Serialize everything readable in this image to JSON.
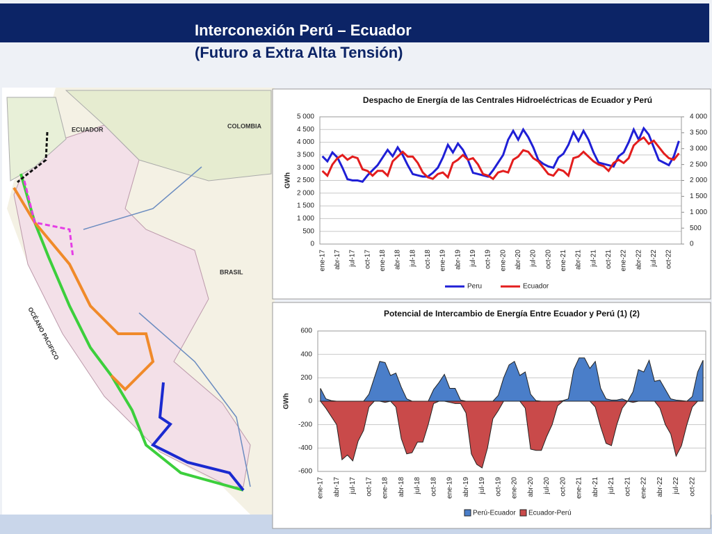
{
  "header": {
    "title": "Interconexión Perú – Ecuador",
    "subtitle": "(Futuro a Extra Alta Tensión)"
  },
  "map": {
    "labels": [
      "ECUADOR",
      "COLOMBIA",
      "BRASIL",
      "OCÉANO PACIFICO"
    ]
  },
  "chart_data": [
    {
      "type": "line",
      "title": "Despacho de Energía de las Centrales Hidroeléctricas de Ecuador y Perú",
      "y_label": "GWh",
      "categories": [
        "ene-17",
        null,
        null,
        "abr-17",
        null,
        null,
        "jul-17",
        null,
        null,
        "oct-17",
        null,
        null,
        "ene-18",
        null,
        null,
        "abr-18",
        null,
        null,
        "jul-18",
        null,
        null,
        "oct-18",
        null,
        null,
        "ene-19",
        null,
        null,
        "abr-19",
        null,
        null,
        "jul-19",
        null,
        null,
        "oct-19",
        null,
        null,
        "ene-20",
        null,
        null,
        "abr-20",
        null,
        null,
        "jul-20",
        null,
        null,
        "oct-20",
        null,
        null,
        "ene-21",
        null,
        null,
        "abr-21",
        null,
        null,
        "jul-21",
        null,
        null,
        "oct-21",
        null,
        null,
        "ene-22",
        null,
        null,
        "abr-22",
        null,
        null,
        "jul-22",
        null,
        null,
        "oct-22",
        null,
        null
      ],
      "series": [
        {
          "name": "Peru",
          "color": "#1f1fd6",
          "values": [
            3450,
            3250,
            3600,
            3400,
            3000,
            2550,
            2500,
            2500,
            2450,
            2700,
            2900,
            3100,
            3400,
            3700,
            3450,
            3800,
            3500,
            3100,
            2750,
            2700,
            2650,
            2650,
            2800,
            3000,
            3400,
            3900,
            3600,
            3950,
            3700,
            3300,
            2800,
            2750,
            2700,
            2650,
            2900,
            3200,
            3500,
            4100,
            4450,
            4100,
            4500,
            4200,
            3800,
            3300,
            3150,
            3050,
            3000,
            3400,
            3550,
            3900,
            4400,
            4050,
            4450,
            4100,
            3600,
            3200,
            3150,
            3100,
            3050,
            3450,
            3600,
            4000,
            4500,
            4100,
            4550,
            4300,
            3800,
            3300,
            3200,
            3100,
            3450,
            4050
          ]
        },
        {
          "name": "Ecuador",
          "color": "#e31d1d",
          "axis": "y2",
          "values": [
            2300,
            2150,
            2500,
            2700,
            2800,
            2650,
            2750,
            2700,
            2350,
            2300,
            2150,
            2300,
            2300,
            2150,
            2600,
            2750,
            2900,
            2750,
            2750,
            2550,
            2250,
            2100,
            2050,
            2200,
            2250,
            2100,
            2550,
            2650,
            2800,
            2650,
            2700,
            2500,
            2200,
            2150,
            2050,
            2250,
            2300,
            2250,
            2650,
            2750,
            2950,
            2900,
            2700,
            2600,
            2400,
            2200,
            2150,
            2350,
            2300,
            2150,
            2700,
            2750,
            2900,
            2750,
            2600,
            2500,
            2450,
            2300,
            2550,
            2650,
            2550,
            2700,
            3100,
            3250,
            3350,
            3150,
            3250,
            3050,
            2850,
            2700,
            2650,
            2850
          ]
        }
      ],
      "ylim": [
        0,
        5000
      ],
      "yticks": [
        0,
        500,
        {
          "value": 1000,
          "label": "1 000"
        },
        {
          "value": 1500,
          "label": "1 500"
        },
        {
          "value": 2000,
          "label": "2 000"
        },
        {
          "value": 2500,
          "label": "2 500"
        },
        {
          "value": 3000,
          "label": "3 000"
        },
        {
          "value": 3500,
          "label": "3 500"
        },
        {
          "value": 4000,
          "label": "4 000"
        },
        {
          "value": 4500,
          "label": "4 500"
        },
        {
          "value": 5000,
          "label": "5 000"
        }
      ],
      "y2lim": [
        0,
        4000
      ],
      "y2ticks": [
        0,
        500,
        {
          "value": 1000,
          "label": "1 000"
        },
        {
          "value": 1500,
          "label": "1 500"
        },
        {
          "value": 2000,
          "label": "2 000"
        },
        {
          "value": 2500,
          "label": "2 500"
        },
        {
          "value": 3000,
          "label": "3 000"
        },
        {
          "value": 3500,
          "label": "3 500"
        },
        {
          "value": 4000,
          "label": "4 000"
        }
      ],
      "grid": true,
      "legend": "bottom"
    },
    {
      "type": "area",
      "title": "Potencial de Intercambio de Energía Entre Ecuador y Perú  (1) (2)",
      "y_label": "GWh",
      "categories": [
        "ene-17",
        null,
        null,
        "abr-17",
        null,
        null,
        "jul-17",
        null,
        null,
        "oct-17",
        null,
        null,
        "ene-18",
        null,
        null,
        "abr-18",
        null,
        null,
        "jul-18",
        null,
        null,
        "oct-18",
        null,
        null,
        "ene-19",
        null,
        null,
        "abr-19",
        null,
        null,
        "jul-19",
        null,
        null,
        "oct-19",
        null,
        null,
        "ene-20",
        null,
        null,
        "abr-20",
        null,
        null,
        "jul-20",
        null,
        null,
        "oct-20",
        null,
        null,
        "ene-21",
        null,
        null,
        "abr-21",
        null,
        null,
        "jul-21",
        null,
        null,
        "oct-21",
        null,
        null,
        "ene-22",
        null,
        null,
        "abr-22",
        null,
        null,
        "jul-22",
        null,
        null,
        "oct-22",
        null,
        null
      ],
      "series": [
        {
          "name": "Perú-Ecuador",
          "color": "#4a7ec9",
          "values": [
            110,
            20,
            5,
            0,
            0,
            0,
            0,
            0,
            0,
            60,
            200,
            340,
            330,
            220,
            240,
            120,
            20,
            0,
            0,
            0,
            0,
            100,
            160,
            230,
            110,
            110,
            10,
            0,
            0,
            0,
            0,
            0,
            0,
            50,
            200,
            310,
            340,
            220,
            250,
            60,
            5,
            0,
            0,
            0,
            0,
            5,
            20,
            270,
            370,
            370,
            280,
            340,
            110,
            20,
            10,
            10,
            20,
            0,
            80,
            270,
            250,
            350,
            170,
            180,
            100,
            20,
            10,
            5,
            0,
            40,
            250,
            350
          ]
        },
        {
          "name": "Ecuador-Perú",
          "color": "#c94a4a",
          "values": [
            0,
            -60,
            -130,
            -200,
            -500,
            -460,
            -510,
            -340,
            -250,
            -50,
            0,
            0,
            -10,
            0,
            -50,
            -320,
            -450,
            -440,
            -350,
            -350,
            -200,
            -20,
            0,
            0,
            -10,
            -20,
            -20,
            -100,
            -450,
            -540,
            -570,
            -400,
            -150,
            -80,
            0,
            0,
            0,
            0,
            -60,
            -410,
            -420,
            -420,
            -300,
            -200,
            -40,
            0,
            0,
            0,
            0,
            0,
            0,
            -50,
            -220,
            -360,
            -380,
            -200,
            -60,
            0,
            -10,
            0,
            0,
            0,
            0,
            -60,
            -200,
            -280,
            -470,
            -380,
            -200,
            -50,
            0,
            0
          ]
        }
      ],
      "ylim": [
        -600,
        600
      ],
      "yticks": [
        -600,
        -400,
        -200,
        0,
        200,
        400,
        600
      ],
      "grid": true,
      "legend": "bottom"
    }
  ]
}
